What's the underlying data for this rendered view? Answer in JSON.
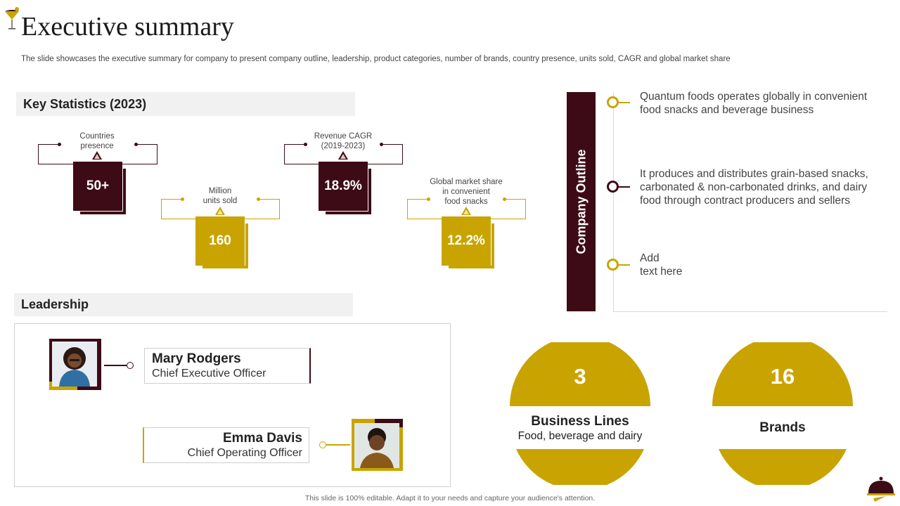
{
  "header": {
    "title": "Executive summary",
    "subtitle": "The slide showcases the executive summary for company to present company outline, leadership, product categories, number of brands, country presence, units sold, CAGR and global market share"
  },
  "colors": {
    "maroon": "#3d0b16",
    "gold": "#c9a400",
    "section_bg": "#f1f1f1"
  },
  "key_statistics": {
    "heading": "Key Statistics (2023)",
    "stats": [
      {
        "label_line1": "Countries",
        "label_line2": "presence",
        "label_line3": "",
        "value": "50+",
        "color": "maroon"
      },
      {
        "label_line1": "Million",
        "label_line2": "units sold",
        "label_line3": "",
        "value": "160",
        "color": "gold"
      },
      {
        "label_line1": "Revenue CAGR",
        "label_line2": "(2019-2023)",
        "label_line3": "",
        "value": "18.9%",
        "color": "maroon"
      },
      {
        "label_line1": "Global market share",
        "label_line2": "in convenient",
        "label_line3": "food snacks",
        "value": "12.2%",
        "color": "gold"
      }
    ]
  },
  "company_outline": {
    "heading": "Company Outline",
    "items": [
      {
        "line1": "Quantum  foods operates globally in convenient",
        "line2": "food snacks and beverage business",
        "line3": ""
      },
      {
        "line1": "It produces and distributes grain-based snacks,",
        "line2": "carbonated & non-carbonated drinks, and dairy",
        "line3": "food through  contract producers and sellers"
      },
      {
        "line1": "Add",
        "line2": "text here",
        "line3": ""
      }
    ]
  },
  "leadership": {
    "heading": "Leadership",
    "people": [
      {
        "name": "Mary Rodgers",
        "role": "Chief Executive Officer"
      },
      {
        "name": "Emma Davis",
        "role": "Chief Operating Officer"
      }
    ]
  },
  "summary_circles": [
    {
      "number": "3",
      "title": "Business Lines",
      "subtitle": "Food, beverage and dairy"
    },
    {
      "number": "16",
      "title": "Brands",
      "subtitle": ""
    }
  ],
  "footer": {
    "text": "This slide is 100% editable.  Adapt it to your needs and capture your audience's attention."
  }
}
